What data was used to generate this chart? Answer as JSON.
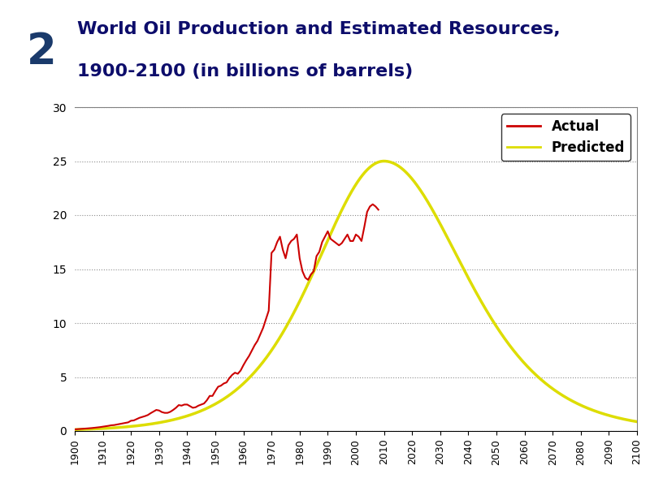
{
  "title_line1": "World Oil Production and Estimated Resources,",
  "title_line2": "1900-2100 (in billions of barrels)",
  "title_color": "#0d0d6b",
  "title_fontsize": 16,
  "badge_number": "2",
  "badge_bg_color": "#1a3a6b",
  "badge_light_color": "#7bafd4",
  "background_color": "#ffffff",
  "header_bg_color": "#cfe0f0",
  "ylim": [
    0,
    30
  ],
  "yticks": [
    0,
    5,
    10,
    15,
    20,
    25,
    30
  ],
  "xticks": [
    1900,
    1910,
    1920,
    1930,
    1940,
    1950,
    1960,
    1970,
    1980,
    1990,
    2000,
    2010,
    2020,
    2030,
    2040,
    2050,
    2060,
    2070,
    2080,
    2090,
    2100
  ],
  "actual_color": "#cc0000",
  "predicted_color": "#dddd00",
  "legend_actual": "Actual",
  "legend_predicted": "Predicted",
  "actual_x": [
    1900,
    1901,
    1902,
    1903,
    1904,
    1905,
    1906,
    1907,
    1908,
    1909,
    1910,
    1911,
    1912,
    1913,
    1914,
    1915,
    1916,
    1917,
    1918,
    1919,
    1920,
    1921,
    1922,
    1923,
    1924,
    1925,
    1926,
    1927,
    1928,
    1929,
    1930,
    1931,
    1932,
    1933,
    1934,
    1935,
    1936,
    1937,
    1938,
    1939,
    1940,
    1941,
    1942,
    1943,
    1944,
    1945,
    1946,
    1947,
    1948,
    1949,
    1950,
    1951,
    1952,
    1953,
    1954,
    1955,
    1956,
    1957,
    1958,
    1959,
    1960,
    1961,
    1962,
    1963,
    1964,
    1965,
    1966,
    1967,
    1968,
    1969,
    1970,
    1971,
    1972,
    1973,
    1974,
    1975,
    1976,
    1977,
    1978,
    1979,
    1980,
    1981,
    1982,
    1983,
    1984,
    1985,
    1986,
    1987,
    1988,
    1989,
    1990,
    1991,
    1992,
    1993,
    1994,
    1995,
    1996,
    1997,
    1998,
    1999,
    2000,
    2001,
    2002,
    2003,
    2004,
    2005,
    2006,
    2007,
    2008
  ],
  "actual_y": [
    0.15,
    0.17,
    0.19,
    0.21,
    0.23,
    0.25,
    0.27,
    0.3,
    0.33,
    0.36,
    0.4,
    0.44,
    0.48,
    0.53,
    0.55,
    0.6,
    0.65,
    0.7,
    0.75,
    0.8,
    0.95,
    0.98,
    1.1,
    1.22,
    1.3,
    1.38,
    1.48,
    1.65,
    1.8,
    1.95,
    1.9,
    1.75,
    1.68,
    1.68,
    1.78,
    1.95,
    2.15,
    2.4,
    2.35,
    2.45,
    2.45,
    2.3,
    2.15,
    2.2,
    2.35,
    2.45,
    2.55,
    2.85,
    3.25,
    3.25,
    3.7,
    4.1,
    4.2,
    4.4,
    4.5,
    4.9,
    5.2,
    5.4,
    5.3,
    5.6,
    6.1,
    6.55,
    6.95,
    7.45,
    7.95,
    8.35,
    8.95,
    9.55,
    10.35,
    11.15,
    16.5,
    16.8,
    17.5,
    18.0,
    16.8,
    16.0,
    17.2,
    17.6,
    17.8,
    18.2,
    16.0,
    14.8,
    14.2,
    14.0,
    14.5,
    14.8,
    16.2,
    16.6,
    17.5,
    18.0,
    18.5,
    17.8,
    17.6,
    17.4,
    17.2,
    17.4,
    17.8,
    18.2,
    17.6,
    17.6,
    18.2,
    18.0,
    17.6,
    18.9,
    20.3,
    20.8,
    21.0,
    20.8,
    20.5
  ],
  "predicted_peak_x": 2010,
  "predicted_peak_y": 25.0,
  "predicted_scale_up": 33,
  "predicted_scale_down": 38
}
